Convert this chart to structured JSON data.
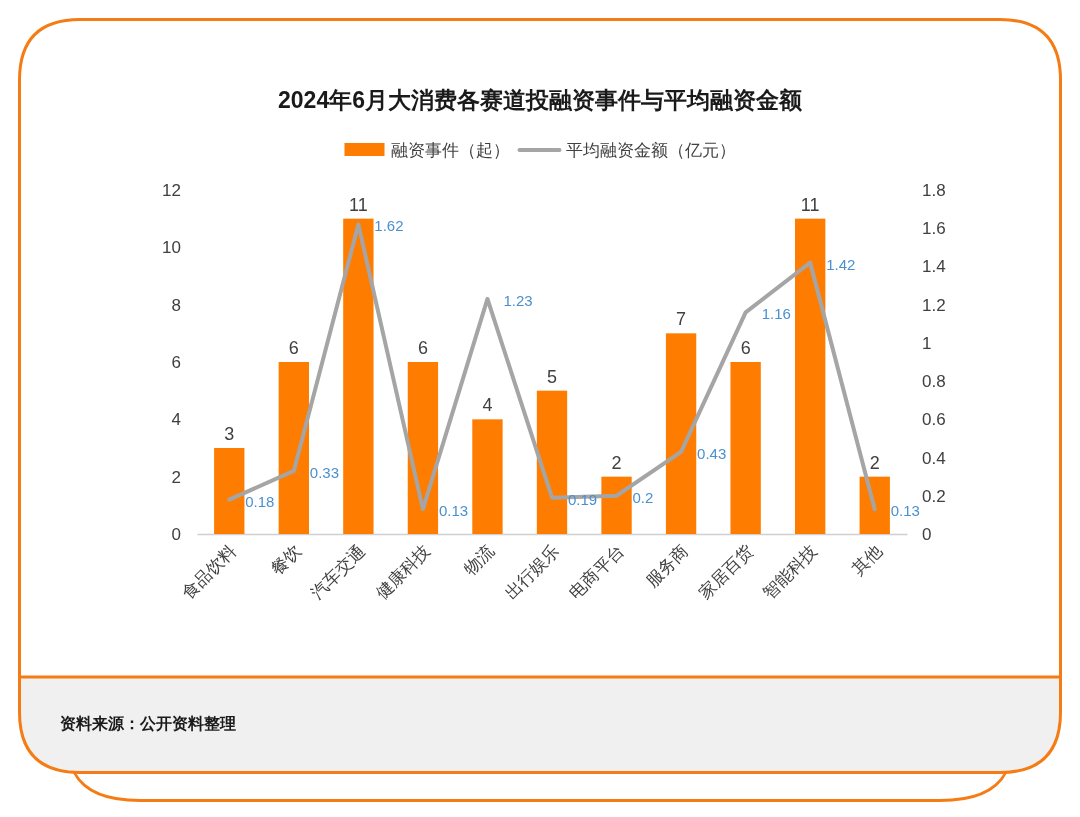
{
  "chart_data": {
    "type": "bar",
    "title": "2024年6月大消费各赛道投融资事件与平均融资金额",
    "categories": [
      "食品饮料",
      "餐饮",
      "汽车交通",
      "健康科技",
      "物流",
      "出行娱乐",
      "电商平台",
      "服务商",
      "家居百货",
      "智能科技",
      "其他"
    ],
    "series": [
      {
        "name": "融资事件（起）",
        "color": "#fe7c00",
        "values": [
          3,
          6,
          11,
          6,
          4,
          5,
          2,
          7,
          6,
          11,
          2
        ]
      },
      {
        "name": "平均融资金额（亿元）",
        "type": "line",
        "axis": "y2",
        "color": "#a5a5a5",
        "values": [
          0.18,
          0.33,
          1.62,
          0.13,
          1.23,
          0.19,
          0.2,
          0.43,
          1.16,
          1.42,
          0.13
        ]
      }
    ],
    "ylim": [
      0,
      12
    ],
    "yticks": [
      0,
      2,
      4,
      6,
      8,
      10,
      12
    ],
    "y2lim": [
      0,
      1.8
    ],
    "y2ticks": [
      0,
      0.2,
      0.4,
      0.6,
      0.8,
      1,
      1.2,
      1.4,
      1.6,
      1.8
    ],
    "data_labels": true,
    "legend": "top",
    "annotations": [
      "资料来源：公开资料整理"
    ]
  }
}
